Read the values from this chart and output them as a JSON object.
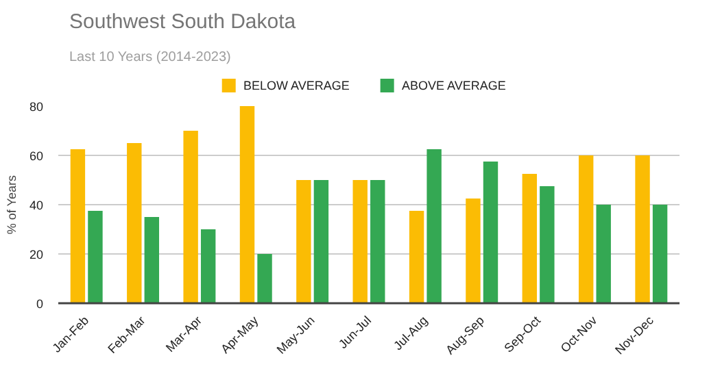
{
  "chart_data": {
    "type": "bar",
    "title": "Southwest South Dakota",
    "subtitle": "Last 10 Years (2014-2023)",
    "ylabel": "% of Years",
    "categories": [
      "Jan-Feb",
      "Feb-Mar",
      "Mar-Apr",
      "Apr-May",
      "May-Jun",
      "Jun-Jul",
      "Jul-Aug",
      "Aug-Sep",
      "Sep-Oct",
      "Oct-Nov",
      "Nov-Dec"
    ],
    "series": [
      {
        "name": "BELOW AVERAGE",
        "color": "#fbbc04",
        "values": [
          62.5,
          65,
          70,
          80,
          50,
          50,
          37.5,
          42.5,
          52.5,
          60,
          60
        ]
      },
      {
        "name": "ABOVE AVERAGE",
        "color": "#34a853",
        "values": [
          37.5,
          35,
          30,
          20,
          50,
          50,
          62.5,
          57.5,
          47.5,
          40,
          40
        ]
      }
    ],
    "ylim": [
      0,
      80
    ],
    "yticks": [
      0,
      20,
      40,
      60,
      80
    ],
    "grid": "y",
    "legend": "top"
  }
}
